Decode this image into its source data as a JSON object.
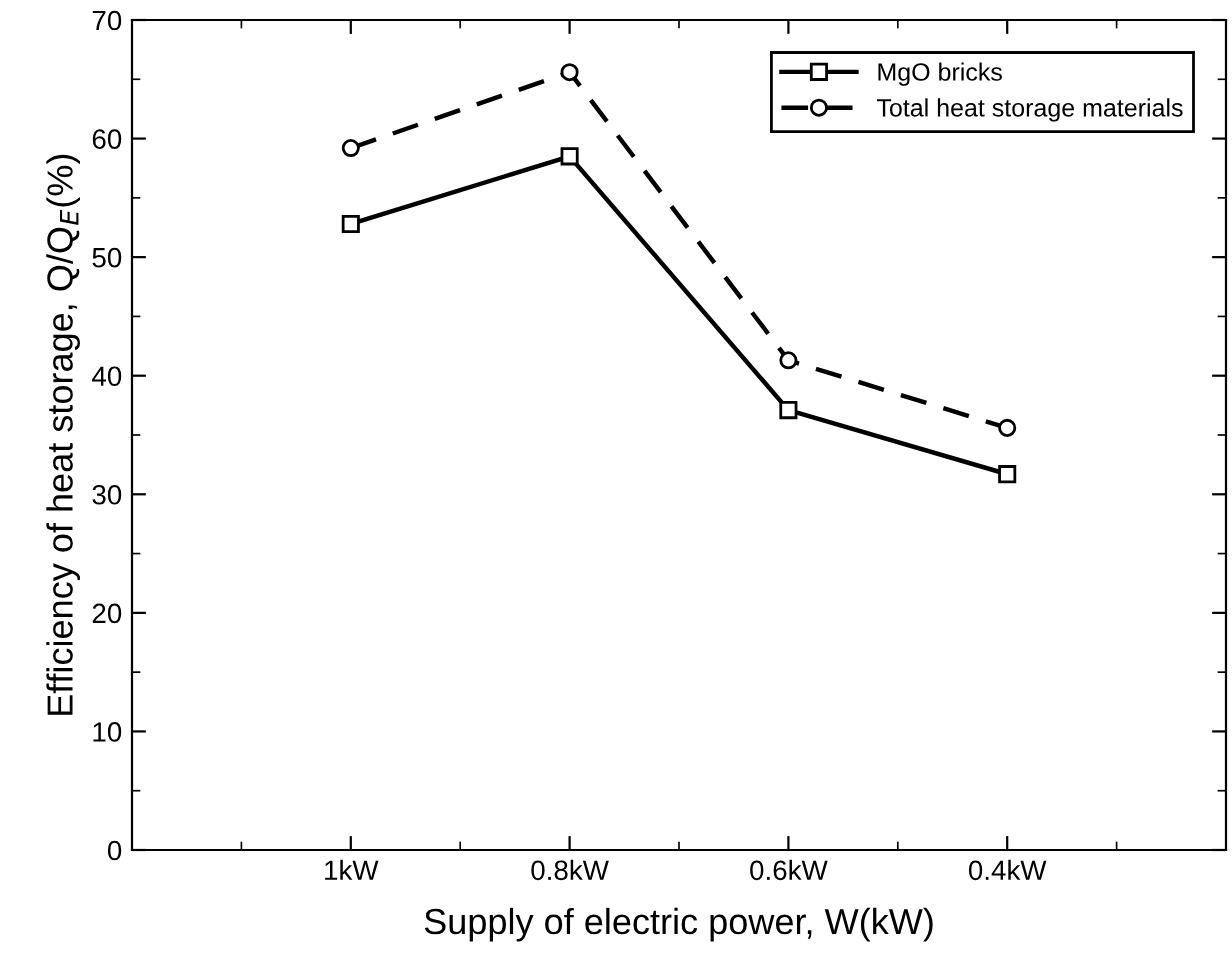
{
  "chart_data": {
    "type": "line",
    "xlabel": "Supply of electric power, W(kW)",
    "ylabel": "Efficiency of heat storage, Q/Q$_{E}$(%)",
    "categories": [
      "1kW",
      "0.8kW",
      "0.6kW",
      "0.4kW"
    ],
    "series": [
      {
        "name": "MgO bricks",
        "color": "#000000",
        "values": [
          52.8,
          58.5,
          37.1,
          31.7
        ],
        "marker": "square",
        "line_style": "solid"
      },
      {
        "name": "Total heat storage materials",
        "color": "#000000",
        "values": [
          59.2,
          65.6,
          41.3,
          35.6
        ],
        "marker": "circle",
        "line_style": "dashed"
      }
    ],
    "ylim": [
      0,
      70
    ],
    "yticks": [
      0,
      10,
      20,
      30,
      40,
      50,
      60,
      70
    ],
    "grid": false,
    "legend": "top right"
  }
}
